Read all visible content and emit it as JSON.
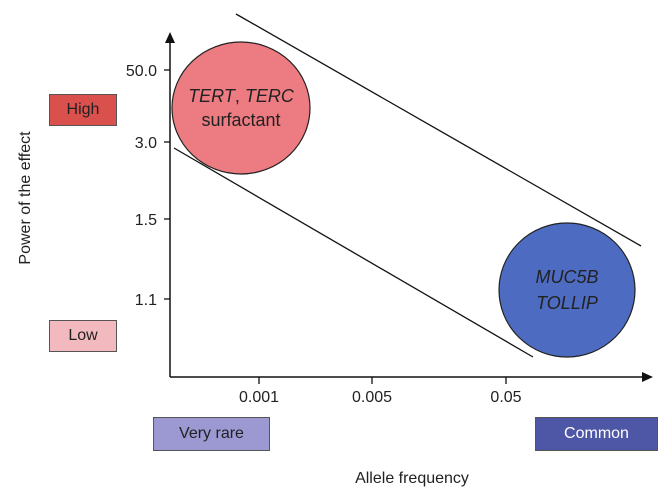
{
  "y_axis": {
    "title": "Power of the effect",
    "ticks": [
      "50.0",
      "3.0",
      "1.5",
      "1.1"
    ]
  },
  "x_axis": {
    "title": "Allele frequency",
    "ticks": [
      "0.001",
      "0.005",
      "0.05"
    ]
  },
  "y_categories": [
    {
      "label": "High",
      "color": "#d9504d"
    },
    {
      "label": "Low",
      "color": "#f2b9bf"
    }
  ],
  "x_categories": [
    {
      "label": "Very rare",
      "color": "#9c98d2"
    },
    {
      "label": "Common",
      "color": "#4e56a6"
    }
  ],
  "bubbles": [
    {
      "line1_a": "TERT",
      "line1_sep": ", ",
      "line1_b": "TERC",
      "line2": "surfactant",
      "color": "#ec7b82"
    },
    {
      "line1": "MUC5B",
      "line2": "TOLLIP",
      "color": "#4d6bc0"
    }
  ]
}
